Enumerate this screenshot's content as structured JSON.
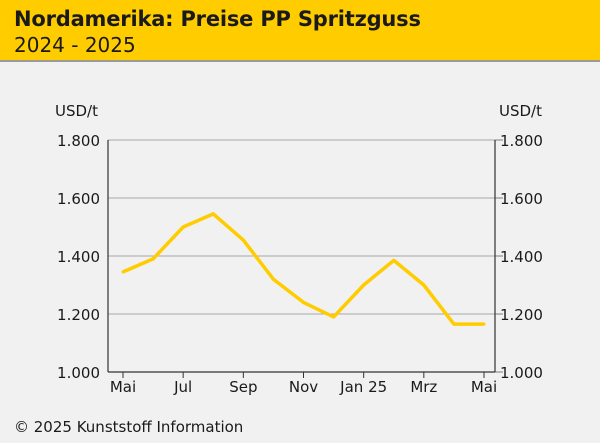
{
  "header": {
    "title": "Nordamerika: Preise PP Spritzguss",
    "subtitle": "2024 - 2025"
  },
  "footer": {
    "copyright": "© 2025 Kunststoff Information"
  },
  "colors": {
    "header_bg": "#ffcc00",
    "line": "#ffcc00",
    "background": "#f1f1f1",
    "grid": "#a6a6a6"
  },
  "chart_data": {
    "type": "line",
    "y_unit_left": "USD/t",
    "y_unit_right": "USD/t",
    "ylim": [
      1000,
      1800
    ],
    "y_ticks": [
      1000,
      1200,
      1400,
      1600,
      1800
    ],
    "y_tick_labels": [
      "1.000",
      "1.200",
      "1.400",
      "1.600",
      "1.800"
    ],
    "grid": "horizontal",
    "x_tick_labels": [
      "Mai",
      "Jul",
      "Sep",
      "Nov",
      "Jan 25",
      "Mrz",
      "Mai"
    ],
    "x": [
      "2024-05",
      "2024-06",
      "2024-07",
      "2024-08",
      "2024-09",
      "2024-10",
      "2024-11",
      "2024-12",
      "2025-01",
      "2025-02",
      "2025-03",
      "2025-04",
      "2025-05"
    ],
    "series": [
      {
        "values": [
          1345,
          1390,
          1500,
          1545,
          1455,
          1320,
          1240,
          1190,
          1300,
          1385,
          1300,
          1165,
          1165
        ]
      }
    ]
  }
}
